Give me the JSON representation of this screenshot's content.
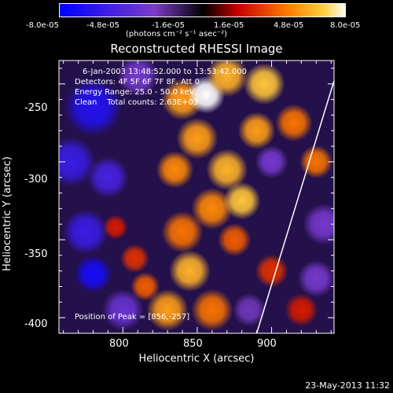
{
  "chart_data": {
    "type": "heatmap",
    "title": "Reconstructed RHESSI Image",
    "xlabel": "Heliocentric X (arcsec)",
    "ylabel": "Heliocentric Y (arcsec)",
    "xlim": [
      757,
      942
    ],
    "ylim": [
      -410,
      -235
    ],
    "x_ticks": [
      800,
      850,
      900
    ],
    "y_ticks": [
      -250,
      -300,
      -350,
      -400
    ],
    "colorbar": {
      "min": -8e-05,
      "max": 8e-05,
      "tick_labels": [
        "-8.0e-05",
        "-4.8e-05",
        "-1.6e-05",
        "1.6e-05",
        "4.8e-05",
        "8.0e-05"
      ],
      "unit_label": "(photons cm⁻² s⁻¹ asec⁻²)"
    },
    "annotations": {
      "time_range": "6-Jan-2003 13:48:52.000 to 13:53:42.000",
      "detectors": "Detectors: 4F 5F 6F 7F 8F, Att 0",
      "energy_range": "Energy Range: 25.0 - 50.0 keV",
      "method_counts": "Clean    Total counts: 2.63E+03",
      "peak_position": "Position of Peak = [856,-257]"
    },
    "limb_line": {
      "x": [
        890,
        942
      ],
      "y": [
        -410,
        -248
      ]
    },
    "peak": {
      "x": 856,
      "y": -257
    },
    "sources": [
      {
        "x": 780,
        "y": -265,
        "value": -6.5e-05,
        "radius": 14
      },
      {
        "x": 765,
        "y": -300,
        "value": -5.5e-05,
        "radius": 12
      },
      {
        "x": 790,
        "y": -310,
        "value": -5e-05,
        "radius": 10
      },
      {
        "x": 775,
        "y": -345,
        "value": -5.5e-05,
        "radius": 11
      },
      {
        "x": 780,
        "y": -372,
        "value": -7e-05,
        "radius": 9
      },
      {
        "x": 800,
        "y": -395,
        "value": -3.5e-05,
        "radius": 10
      },
      {
        "x": 810,
        "y": -245,
        "value": -3e-05,
        "radius": 10
      },
      {
        "x": 795,
        "y": -342,
        "value": 2.5e-05,
        "radius": 6
      },
      {
        "x": 808,
        "y": -362,
        "value": 3e-05,
        "radius": 7
      },
      {
        "x": 815,
        "y": -380,
        "value": 4e-05,
        "radius": 7
      },
      {
        "x": 840,
        "y": -260,
        "value": 5.5e-05,
        "radius": 10
      },
      {
        "x": 856,
        "y": -257,
        "value": 8e-05,
        "radius": 9
      },
      {
        "x": 870,
        "y": -245,
        "value": 6e-05,
        "radius": 10
      },
      {
        "x": 895,
        "y": -250,
        "value": 6.5e-05,
        "radius": 10
      },
      {
        "x": 850,
        "y": -285,
        "value": 5.5e-05,
        "radius": 10
      },
      {
        "x": 835,
        "y": -305,
        "value": 5e-05,
        "radius": 9
      },
      {
        "x": 870,
        "y": -305,
        "value": 6e-05,
        "radius": 10
      },
      {
        "x": 860,
        "y": -330,
        "value": 5e-05,
        "radius": 10
      },
      {
        "x": 880,
        "y": -325,
        "value": 6.5e-05,
        "radius": 9
      },
      {
        "x": 840,
        "y": -345,
        "value": 4.5e-05,
        "radius": 10
      },
      {
        "x": 845,
        "y": -370,
        "value": 6e-05,
        "radius": 10
      },
      {
        "x": 830,
        "y": -395,
        "value": 5.5e-05,
        "radius": 10
      },
      {
        "x": 860,
        "y": -395,
        "value": 4.5e-05,
        "radius": 10
      },
      {
        "x": 875,
        "y": -350,
        "value": 4e-05,
        "radius": 8
      },
      {
        "x": 890,
        "y": -280,
        "value": 5.5e-05,
        "radius": 9
      },
      {
        "x": 915,
        "y": -275,
        "value": 4.5e-05,
        "radius": 9
      },
      {
        "x": 930,
        "y": -300,
        "value": 4.5e-05,
        "radius": 8
      },
      {
        "x": 900,
        "y": -370,
        "value": 3e-05,
        "radius": 8
      },
      {
        "x": 920,
        "y": -395,
        "value": 2.5e-05,
        "radius": 8
      },
      {
        "x": 900,
        "y": -300,
        "value": -3e-05,
        "radius": 8
      },
      {
        "x": 935,
        "y": -340,
        "value": -3e-05,
        "radius": 10
      },
      {
        "x": 930,
        "y": -375,
        "value": -3e-05,
        "radius": 9
      },
      {
        "x": 885,
        "y": -395,
        "value": -2.5e-05,
        "radius": 8
      }
    ]
  },
  "footer": {
    "timestamp": "23-May-2013 11:32"
  }
}
